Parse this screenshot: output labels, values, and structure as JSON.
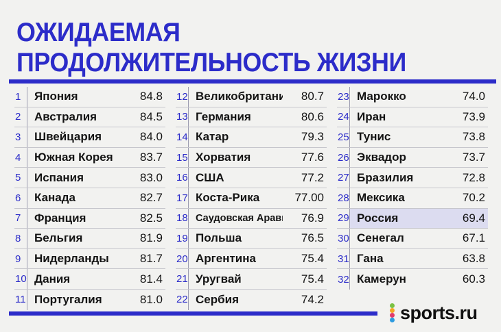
{
  "header": {
    "title_line1": "ОЖИДАЕМАЯ",
    "title_line2": "ПРОДОЛЖИТЕЛЬНОСТЬ ЖИЗНИ"
  },
  "accent_color": "#2c2cc9",
  "highlight_color": "#dcdcf0",
  "rankings": [
    {
      "rank": "1",
      "country": "Япония",
      "value": "84.8"
    },
    {
      "rank": "2",
      "country": "Австралия",
      "value": "84.5"
    },
    {
      "rank": "3",
      "country": "Швейцария",
      "value": "84.0"
    },
    {
      "rank": "4",
      "country": "Южная Корея",
      "value": "83.7"
    },
    {
      "rank": "5",
      "country": "Испания",
      "value": "83.0"
    },
    {
      "rank": "6",
      "country": "Канада",
      "value": "82.7"
    },
    {
      "rank": "7",
      "country": "Франция",
      "value": "82.5"
    },
    {
      "rank": "8",
      "country": "Бельгия",
      "value": "81.9"
    },
    {
      "rank": "9",
      "country": "Нидерланды",
      "value": "81.7"
    },
    {
      "rank": "10",
      "country": "Дания",
      "value": "81.4"
    },
    {
      "rank": "11",
      "country": "Португалия",
      "value": "81.0"
    },
    {
      "rank": "12",
      "country": "Великобритания",
      "value": "80.7"
    },
    {
      "rank": "13",
      "country": "Германия",
      "value": "80.6"
    },
    {
      "rank": "14",
      "country": "Катар",
      "value": "79.3"
    },
    {
      "rank": "15",
      "country": "Хорватия",
      "value": "77.6"
    },
    {
      "rank": "16",
      "country": "США",
      "value": "77.2"
    },
    {
      "rank": "17",
      "country": "Коста-Рика",
      "value": "77.00"
    },
    {
      "rank": "18",
      "country": "Саудовская Аравия",
      "value": "76.9"
    },
    {
      "rank": "19",
      "country": "Польша",
      "value": "76.5"
    },
    {
      "rank": "20",
      "country": "Аргентина",
      "value": "75.4"
    },
    {
      "rank": "21",
      "country": "Уругвай",
      "value": "75.4"
    },
    {
      "rank": "22",
      "country": "Сербия",
      "value": "74.2"
    },
    {
      "rank": "23",
      "country": "Марокко",
      "value": "74.0"
    },
    {
      "rank": "24",
      "country": "Иран",
      "value": "73.9"
    },
    {
      "rank": "25",
      "country": "Тунис",
      "value": "73.8"
    },
    {
      "rank": "26",
      "country": "Эквадор",
      "value": "73.7"
    },
    {
      "rank": "27",
      "country": "Бразилия",
      "value": "72.8"
    },
    {
      "rank": "28",
      "country": "Мексика",
      "value": "70.2"
    },
    {
      "rank": "29",
      "country": "Россия",
      "value": "69.4"
    },
    {
      "rank": "30",
      "country": "Сенегал",
      "value": "67.1"
    },
    {
      "rank": "31",
      "country": "Гана",
      "value": "63.8"
    },
    {
      "rank": "32",
      "country": "Камерун",
      "value": "60.3"
    }
  ],
  "highlighted_rank": "29",
  "logo": {
    "text": "sports.ru",
    "dot_colors": [
      "#7ac143",
      "#f5a623",
      "#e23b6a",
      "#2c9be0"
    ]
  }
}
